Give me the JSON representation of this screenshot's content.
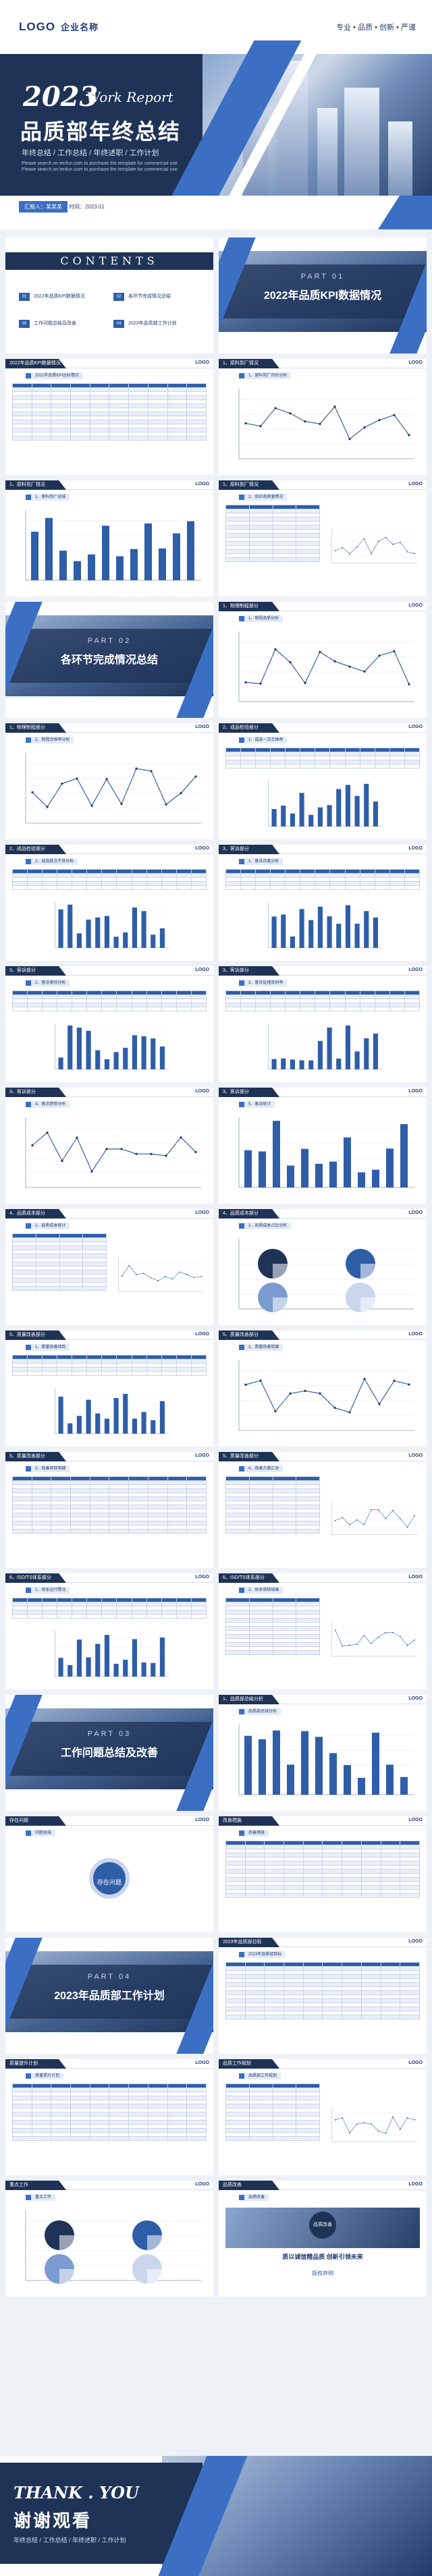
{
  "cover": {
    "logo": "LOGO",
    "company": "企业名称",
    "motto": "专业 • 品质 • 创新 • 严谨",
    "year": "2023",
    "work_report": "Work Report",
    "title": "品质部年终总结",
    "keywords": "年终总结 / 工作总结 / 年终述职 / 工作计划",
    "desc": "Please search on tenfun.com to purchase the template for commercial use. Please search on tenfun.com to purchase the template for commercial use.",
    "reporter": "汇报人：某某某",
    "date": "时间：2023.01"
  },
  "contents": {
    "title": "CONTENTS",
    "items": [
      {
        "num": "01",
        "label": "2022年品质KPI数据情况"
      },
      {
        "num": "02",
        "label": "各环节完成情况总结"
      },
      {
        "num": "03",
        "label": "工作问题总结及改善"
      },
      {
        "num": "04",
        "label": "2023年品质部工作计划"
      }
    ]
  },
  "parts": [
    {
      "part": "PART 01",
      "title": "2022年品质KPI数据情况"
    },
    {
      "part": "PART 02",
      "title": "各环节完成情况总结"
    },
    {
      "part": "PART 03",
      "title": "工作问题总结及改善"
    },
    {
      "part": "PART 04",
      "title": "2023年品质部工作计划"
    }
  ],
  "logo": "LOGO",
  "slides": [
    {
      "num": "2022年品质KPI数据情况",
      "sub": "2022年品质KPI达标情况"
    },
    {
      "num": "1、原料到厂情况",
      "sub": "1、原料到厂月份分析"
    },
    {
      "num": "1、原料到厂情况",
      "sub": "1、原料到厂总结"
    },
    {
      "num": "1、原料到厂情况",
      "sub": "2、供应商质量情况"
    },
    {
      "num": "1、物理制程部分",
      "sub": "1、制程品质分析"
    },
    {
      "num": "1、物理制程部分",
      "sub": "2、制程合格率分析"
    },
    {
      "num": "2、成品检验部分",
      "sub": "1、成品一次合格率"
    },
    {
      "num": "2、成品检验部分",
      "sub": "2、成品批次不良分析"
    },
    {
      "num": "3、客诉部分",
      "sub": "1、客诉月度分析"
    },
    {
      "num": "3、客诉部分",
      "sub": "2、客诉类别分析"
    },
    {
      "num": "3、客诉部分",
      "sub": "3、客诉处理及时率"
    },
    {
      "num": "3、客诉部分",
      "sub": "4、客诉趋势分析"
    },
    {
      "num": "3、客诉部分",
      "sub": "5、客诉统计"
    },
    {
      "num": "4、品质成本部分",
      "sub": "1、品质成本统计"
    },
    {
      "num": "4、品质成本部分",
      "sub": "2、品质成本占比分析"
    },
    {
      "num": "5、质量改善部分",
      "sub": "1、质量改善项目"
    },
    {
      "num": "5、质量改善部分",
      "sub": "2、质量改善效果"
    },
    {
      "num": "5、质量改善部分",
      "sub": "3、改善项目明细"
    },
    {
      "num": "5、质量改善部分",
      "sub": "4、改善方案汇总"
    },
    {
      "num": "6、ISO/TS体系部分",
      "sub": "1、体系运行情况"
    },
    {
      "num": "6、ISO/TS体系部分",
      "sub": "2、体系审核结果"
    }
  ],
  "part3_slides": [
    {
      "num": "1、品质部总结分析",
      "sub": "品质部总结分析"
    },
    {
      "num": "存在问题",
      "sub": "问题总结"
    },
    {
      "num": "改善措施",
      "sub": "改善措施"
    },
    {
      "num": "2023年品质部目标",
      "sub": "2023年品质部目标"
    }
  ],
  "part4_slides": [
    {
      "num": "质量提升计划",
      "sub": "质量提升计划"
    },
    {
      "num": "品质工作规划",
      "sub": "品质部工作规划"
    },
    {
      "num": "重点工作",
      "sub": "重点工作"
    },
    {
      "num": "品质改善",
      "sub": "品质改善"
    }
  ],
  "center_badge": "存在问题",
  "improve_badge": "品质改善",
  "slogan": "质以诚信精品质   创新引领未来",
  "copyright_title": "版权声明",
  "ending": {
    "en": "THANK . YOU",
    "cn": "谢谢观看",
    "keys": "年终总结 / 工作总结 / 年终述职 / 工作计划"
  }
}
